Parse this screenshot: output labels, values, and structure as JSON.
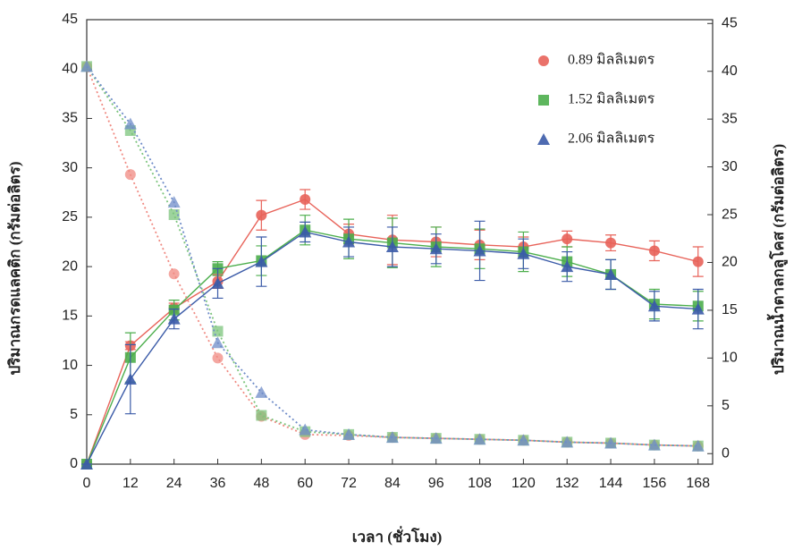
{
  "chart_data": {
    "type": "line",
    "x": [
      0,
      12,
      24,
      36,
      48,
      60,
      72,
      84,
      96,
      108,
      120,
      132,
      144,
      156,
      168
    ],
    "xlim": [
      0,
      172
    ],
    "xticks": [
      0,
      12,
      24,
      36,
      48,
      60,
      72,
      84,
      96,
      108,
      120,
      132,
      144,
      156,
      168
    ],
    "ylim": [
      0,
      45
    ],
    "yticks": [
      0,
      5,
      10,
      15,
      20,
      25,
      30,
      35,
      40,
      45
    ],
    "y2lim": [
      -1.1,
      45.4
    ],
    "y2ticks": [
      0,
      5,
      10,
      15,
      20,
      25,
      30,
      35,
      40,
      45
    ],
    "xlabel": "เวลา (ชั่วโมง)",
    "ylabel": "ปริมาณกรดแลคติก (กรัมต่อลิตร)",
    "y2label": "ปริมาณน้ำตาลกลูโคส (กรัมต่อลิตร)",
    "legend": "upper right",
    "series": [
      {
        "name": "0.89 มิลลิเมตร",
        "color": "#e8635a",
        "marker": "circle",
        "style": "solid",
        "values": [
          0,
          12.0,
          15.8,
          18.5,
          25.2,
          26.8,
          23.3,
          22.7,
          22.5,
          22.2,
          22.0,
          22.8,
          22.4,
          21.6,
          20.5
        ],
        "errors": [
          0,
          0.4,
          0.5,
          0.7,
          1.5,
          1.0,
          1.0,
          2.5,
          1.5,
          1.5,
          1.0,
          0.8,
          0.8,
          1.0,
          1.5
        ]
      },
      {
        "name": "1.52 มิลลิเมตร",
        "color": "#4cae4c",
        "marker": "square",
        "style": "solid",
        "values": [
          0,
          10.8,
          15.6,
          19.8,
          20.6,
          23.7,
          22.8,
          22.4,
          22.0,
          21.8,
          21.5,
          20.5,
          19.2,
          16.2,
          16.0
        ],
        "errors": [
          0,
          2.5,
          1.0,
          0.7,
          1.5,
          1.5,
          2.0,
          2.5,
          2.0,
          2.0,
          2.0,
          1.5,
          1.5,
          1.5,
          1.5
        ]
      },
      {
        "name": "2.06 มิลลิเมตร",
        "color": "#3b5ba8",
        "marker": "triangle",
        "style": "solid",
        "values": [
          0,
          8.6,
          14.7,
          18.3,
          20.5,
          23.5,
          22.5,
          22.0,
          21.8,
          21.6,
          21.3,
          20.0,
          19.2,
          16.0,
          15.7
        ],
        "errors": [
          0,
          3.5,
          1.0,
          1.5,
          2.5,
          1.0,
          1.5,
          2.0,
          1.5,
          3.0,
          1.5,
          1.5,
          1.5,
          1.5,
          2.0
        ]
      },
      {
        "color": "#f08a82",
        "marker": "circle",
        "style": "dotted",
        "axis": "y2",
        "values": [
          40.5,
          29.2,
          18.8,
          10.0,
          3.9,
          2.0,
          1.9,
          1.7,
          1.6,
          1.5,
          1.4,
          1.2,
          1.1,
          0.9,
          0.8
        ]
      },
      {
        "color": "#7cc47c",
        "marker": "square",
        "style": "dotted",
        "axis": "y2",
        "values": [
          40.5,
          33.8,
          25.0,
          12.8,
          4.0,
          2.3,
          2.0,
          1.7,
          1.6,
          1.5,
          1.4,
          1.2,
          1.1,
          0.9,
          0.8
        ]
      },
      {
        "color": "#6f8cc8",
        "marker": "triangle",
        "style": "dotted",
        "axis": "y2",
        "values": [
          40.5,
          34.5,
          26.3,
          11.6,
          6.4,
          2.5,
          2.0,
          1.7,
          1.6,
          1.5,
          1.4,
          1.2,
          1.1,
          0.9,
          0.8
        ]
      }
    ]
  }
}
